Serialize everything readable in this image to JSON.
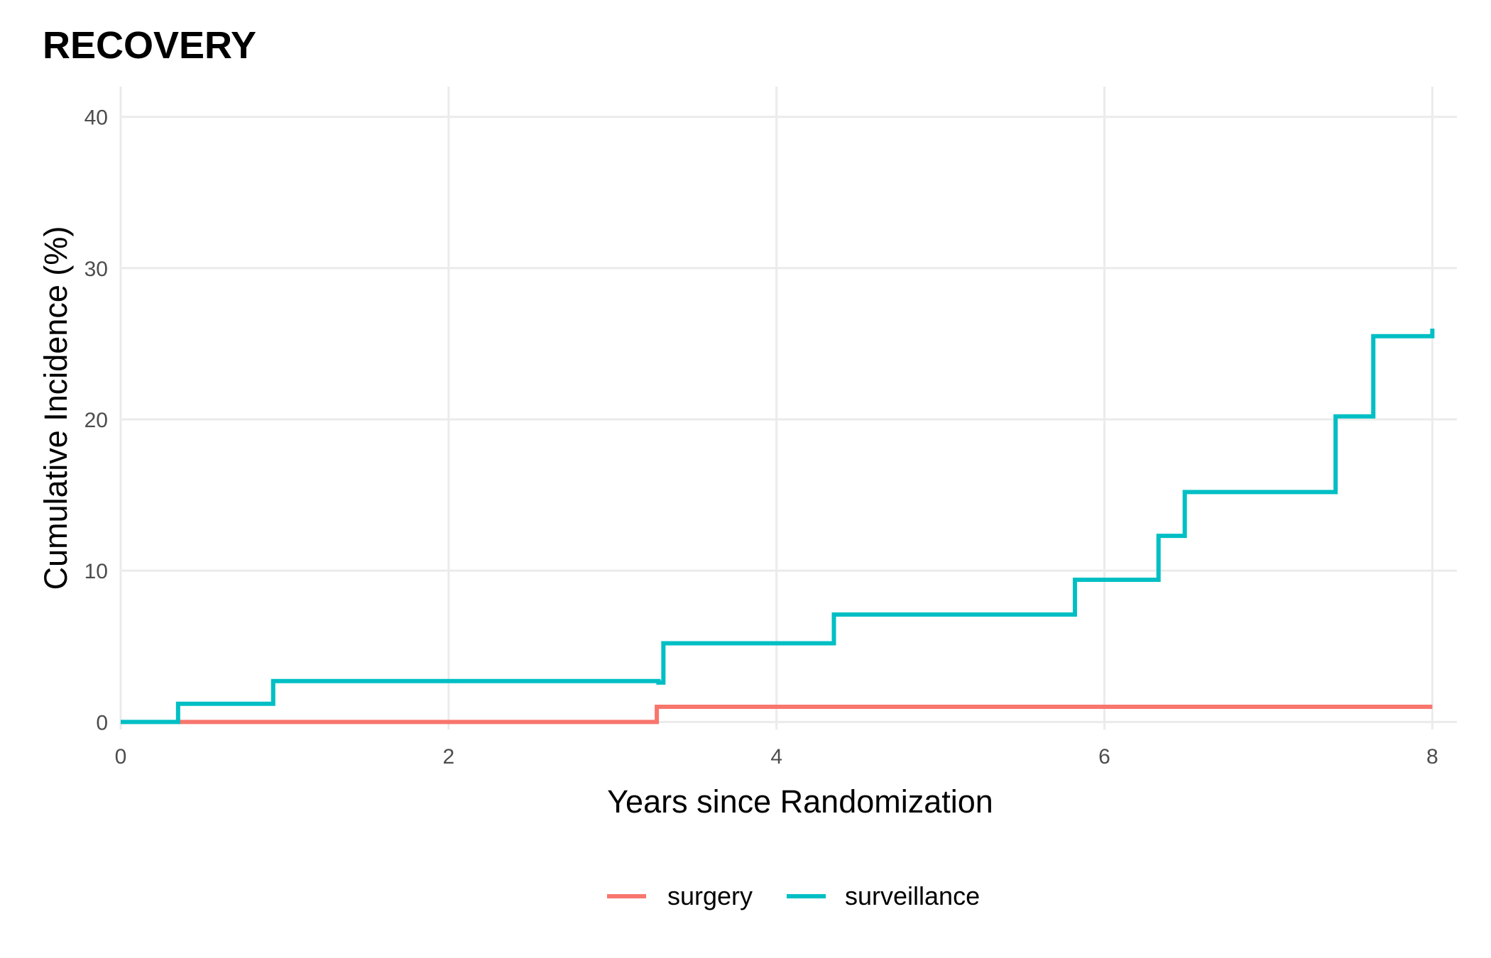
{
  "chart_data": {
    "type": "line",
    "title": "RECOVERY",
    "xlabel": "Years since Randomization",
    "ylabel": "Cumulative Incidence (%)",
    "xlim": [
      0,
      8.15
    ],
    "ylim": [
      -0.5,
      42
    ],
    "x_ticks": [
      0,
      2,
      4,
      6,
      8
    ],
    "y_ticks": [
      0,
      10,
      20,
      30,
      40
    ],
    "grid": true,
    "legend_position": "bottom",
    "step": true,
    "series": [
      {
        "name": "surgery",
        "color": "#F8766D",
        "x": [
          0.35,
          3.27,
          8.0
        ],
        "y": [
          0,
          1.0,
          1.0
        ]
      },
      {
        "name": "surveillance",
        "color": "#00BFC4",
        "x": [
          0,
          0.35,
          0.91,
          0.93,
          3.25,
          3.28,
          3.31,
          4.35,
          5.82,
          6.31,
          6.33,
          6.49,
          7.37,
          7.41,
          7.64,
          8.0,
          8.0
        ],
        "y": [
          0,
          1.2,
          1.2,
          2.7,
          2.7,
          2.6,
          5.2,
          7.1,
          9.4,
          9.4,
          12.3,
          15.2,
          15.2,
          20.2,
          25.5,
          25.5,
          26.0
        ]
      }
    ]
  }
}
